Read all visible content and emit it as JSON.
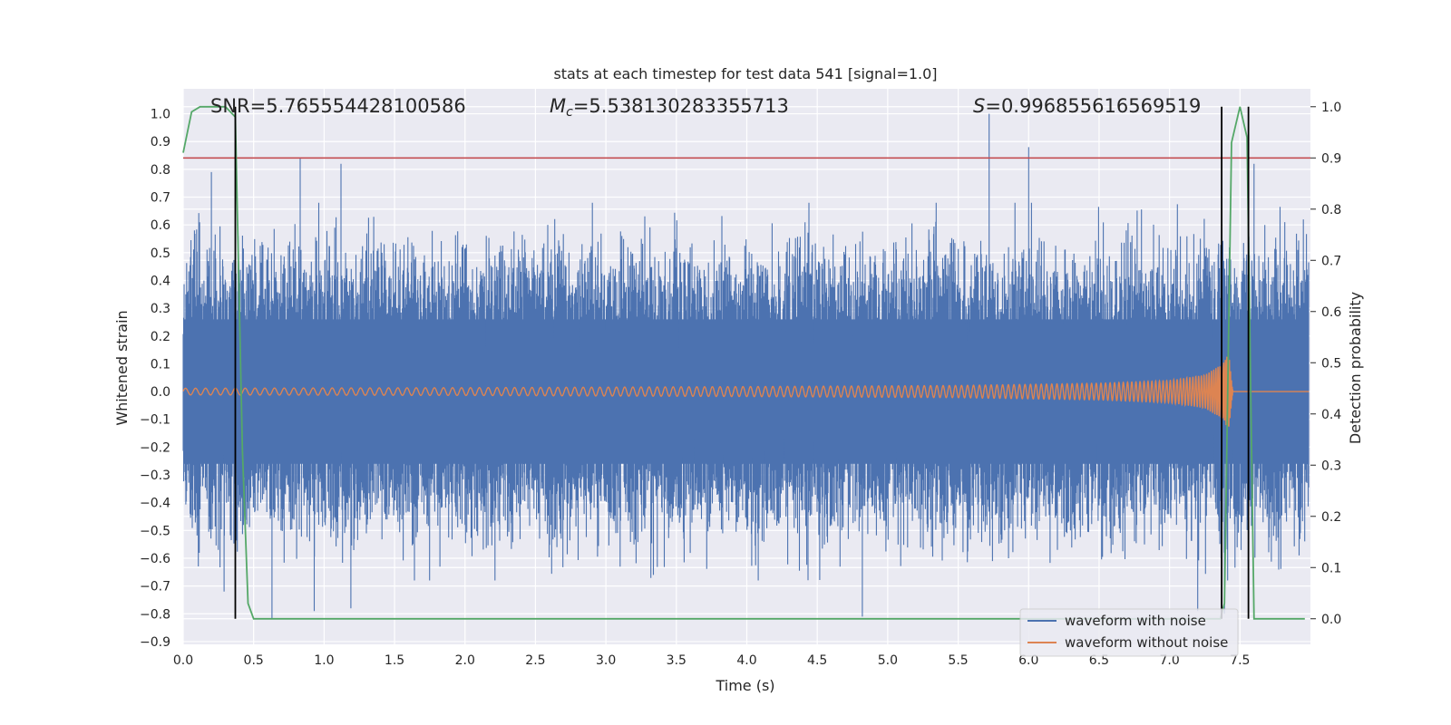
{
  "chart_data": {
    "type": "line",
    "title": "stats at each timestep for test data 541 [signal=1.0]",
    "xlabel": "Time (s)",
    "ylabel": "Whitened strain",
    "y2label": "Detection probability",
    "xlim": [
      0.0,
      8.0
    ],
    "ylim": [
      -0.91,
      1.09
    ],
    "y2lim": [
      -0.05,
      1.035
    ],
    "x_ticks": [
      "0.0",
      "0.5",
      "1.0",
      "1.5",
      "2.0",
      "2.5",
      "3.0",
      "3.5",
      "4.0",
      "4.5",
      "5.0",
      "5.5",
      "6.0",
      "6.5",
      "7.0",
      "7.5"
    ],
    "y_ticks": [
      "1.0",
      "0.9",
      "0.8",
      "0.7",
      "0.6",
      "0.5",
      "0.4",
      "0.3",
      "0.2",
      "0.1",
      "0.0",
      "−0.1",
      "−0.2",
      "−0.3",
      "−0.4",
      "−0.5",
      "−0.6",
      "−0.7",
      "−0.8",
      "−0.9"
    ],
    "y2_ticks": [
      "1.0",
      "0.9",
      "0.8",
      "0.7",
      "0.6",
      "0.5",
      "0.4",
      "0.3",
      "0.2",
      "0.1",
      "0.0"
    ],
    "annotations": {
      "snr": "SNR=5.765554428100586",
      "mc_symbol": "M",
      "mc_sub": "c",
      "mc_value": "=5.538130283355713",
      "s_symbol": "S",
      "s_value": "=0.996855616569519"
    },
    "threshold": {
      "axis": "right",
      "value": 0.9,
      "color": "#c44e52"
    },
    "vertical_lines": [
      0.37,
      7.37,
      7.56
    ],
    "series": [
      {
        "name": "waveform with noise",
        "axis": "left",
        "color": "#4c72b0",
        "note": "dense noise, roughly within [-0.6, 0.6], peaks near 1.0 and -0.82",
        "peaks": [
          {
            "x": 0.08,
            "y": 0.58
          },
          {
            "x": 0.2,
            "y": 0.79
          },
          {
            "x": 0.29,
            "y": -0.72
          },
          {
            "x": 0.83,
            "y": 0.84
          },
          {
            "x": 0.63,
            "y": -0.82
          },
          {
            "x": 0.93,
            "y": -0.79
          },
          {
            "x": 1.12,
            "y": 0.82
          },
          {
            "x": 1.19,
            "y": -0.78
          },
          {
            "x": 2.85,
            "y": 0.2
          },
          {
            "x": 4.82,
            "y": -0.81
          },
          {
            "x": 5.72,
            "y": 1.0
          },
          {
            "x": 6.0,
            "y": 0.88
          },
          {
            "x": 7.2,
            "y": -0.79
          },
          {
            "x": 7.39,
            "y": -0.8
          },
          {
            "x": 7.6,
            "y": 0.82
          }
        ]
      },
      {
        "name": "waveform without noise",
        "axis": "left",
        "color": "#dd8452",
        "note": "chirp oscillation growing in amplitude, merger near t=7.4 s",
        "points": [
          {
            "x": 0.0,
            "amp": 0.012
          },
          {
            "x": 2.0,
            "amp": 0.014
          },
          {
            "x": 4.0,
            "amp": 0.018
          },
          {
            "x": 5.5,
            "amp": 0.022
          },
          {
            "x": 6.5,
            "amp": 0.03
          },
          {
            "x": 7.0,
            "amp": 0.04
          },
          {
            "x": 7.25,
            "amp": 0.06
          },
          {
            "x": 7.38,
            "amp": 0.1
          },
          {
            "x": 7.42,
            "amp": 0.14
          },
          {
            "x": 7.45,
            "amp": 0.0
          },
          {
            "x": 8.0,
            "amp": 0.0
          }
        ]
      },
      {
        "name": "detection probability",
        "axis": "right",
        "color": "#55a868",
        "points": [
          {
            "x": 0.0,
            "y": 0.91
          },
          {
            "x": 0.06,
            "y": 0.99
          },
          {
            "x": 0.12,
            "y": 1.0
          },
          {
            "x": 0.3,
            "y": 1.0
          },
          {
            "x": 0.37,
            "y": 0.98
          },
          {
            "x": 0.42,
            "y": 0.33
          },
          {
            "x": 0.46,
            "y": 0.03
          },
          {
            "x": 0.5,
            "y": 0.0
          },
          {
            "x": 7.36,
            "y": 0.0
          },
          {
            "x": 7.39,
            "y": 0.03
          },
          {
            "x": 7.44,
            "y": 0.93
          },
          {
            "x": 7.5,
            "y": 1.0
          },
          {
            "x": 7.55,
            "y": 0.94
          },
          {
            "x": 7.6,
            "y": 0.0
          },
          {
            "x": 7.96,
            "y": 0.0
          }
        ]
      }
    ],
    "legend": {
      "placement": "lower-right",
      "entries": [
        {
          "label": "waveform with noise",
          "color": "#4c72b0"
        },
        {
          "label": "waveform without noise",
          "color": "#dd8452"
        }
      ]
    },
    "style": {
      "background": "#eaeaf2",
      "grid": true,
      "grid_color": "#ffffff"
    }
  }
}
